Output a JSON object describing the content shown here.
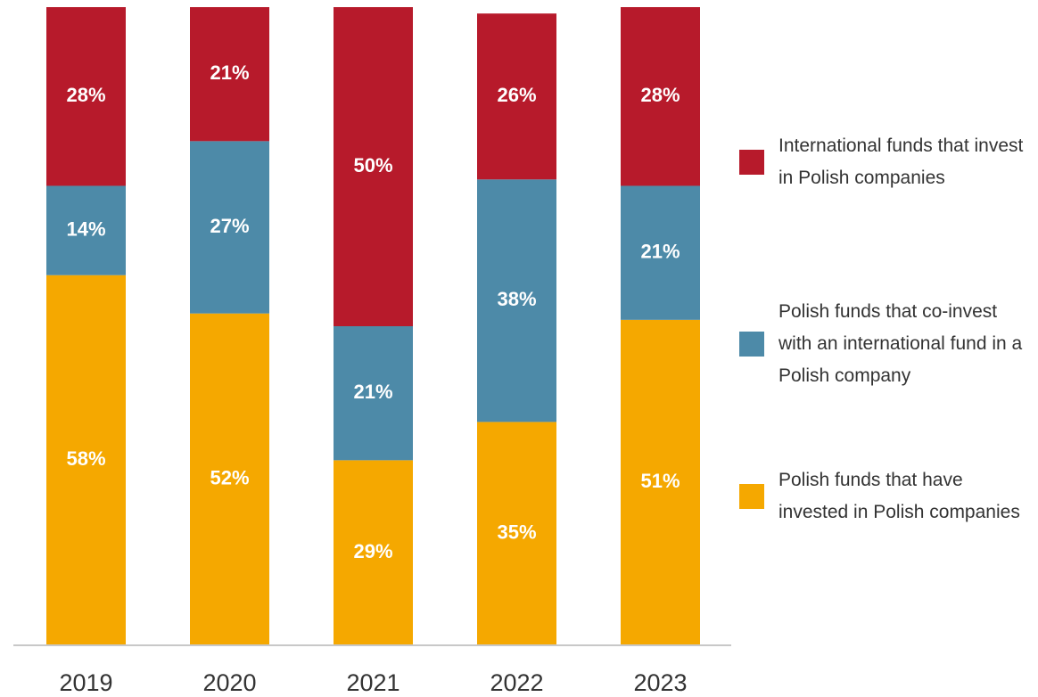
{
  "chart_data": {
    "type": "stacked_bar",
    "categories": [
      "2019",
      "2020",
      "2021",
      "2022",
      "2023"
    ],
    "ylim": [
      0,
      100
    ],
    "legend": "right",
    "series": [
      {
        "name": "Polish funds that have invested in Polish companies",
        "color": "#f5a800",
        "values": [
          58,
          52,
          29,
          35,
          51
        ],
        "value_labels": [
          "58%",
          "52%",
          "29%",
          "35%",
          "51%"
        ]
      },
      {
        "name": "Polish funds that co-invest with an international fund in a Polish company",
        "color": "#4d8aa8",
        "values": [
          14,
          27,
          21,
          38,
          21
        ],
        "value_labels": [
          "14%",
          "27%",
          "21%",
          "38%",
          "21%"
        ]
      },
      {
        "name": "International funds that invest in Polish companies",
        "color": "#b71a2b",
        "values": [
          28,
          21,
          50,
          26,
          28
        ],
        "value_labels": [
          "28%",
          "21%",
          "50%",
          "26%",
          "28%"
        ]
      }
    ]
  }
}
